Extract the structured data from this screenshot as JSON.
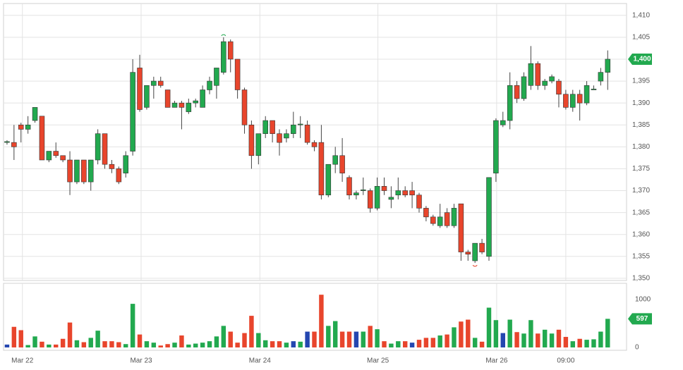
{
  "chart_data": [
    {
      "type": "candlestick",
      "up_color": "#22a94f",
      "down_color": "#e8452c",
      "wick_color": "#444444",
      "open": [
        1381,
        1381,
        1385,
        1384,
        1386,
        1387,
        1377,
        1379,
        1378,
        1377,
        1372,
        1377,
        1372,
        1377,
        1383,
        1376,
        1375,
        1374,
        1379,
        1398,
        1389,
        1394,
        1395,
        1393,
        1389,
        1390,
        1388,
        1390,
        1389,
        1393,
        1394,
        1397,
        1404,
        1400,
        1393,
        1385,
        1378,
        1383,
        1386,
        1383,
        1382,
        1383,
        1385,
        1385,
        1381,
        1381,
        1369,
        1376,
        1378,
        1373,
        1369,
        1370,
        1370,
        1366,
        1371,
        1368,
        1369,
        1370,
        1370,
        1369,
        1366,
        1364,
        1362,
        1365,
        1362,
        1367,
        1356,
        1354,
        1358,
        1355,
        1374,
        1385,
        1386,
        1394,
        1391,
        1394,
        1399,
        1394,
        1395,
        1395,
        1392,
        1389,
        1392,
        1390,
        1393,
        1395,
        1397
      ],
      "high": [
        1381.5,
        1385,
        1385.5,
        1387,
        1389,
        1387,
        1379,
        1381,
        1378,
        1379,
        1377,
        1377,
        1377,
        1384,
        1383,
        1377,
        1375.5,
        1379,
        1400,
        1401,
        1394,
        1396,
        1396,
        1393,
        1390.5,
        1390.5,
        1391,
        1391,
        1394,
        1396,
        1398,
        1405,
        1404.5,
        1400,
        1393.5,
        1386,
        1383,
        1387,
        1386,
        1384,
        1384,
        1388,
        1387,
        1386,
        1381.5,
        1385,
        1376,
        1380,
        1382,
        1373.5,
        1370,
        1373,
        1370.5,
        1373,
        1373,
        1371,
        1373,
        1371,
        1372,
        1369.5,
        1366.5,
        1364.5,
        1367,
        1366,
        1367,
        1367,
        1356.5,
        1358,
        1359,
        1373,
        1386.5,
        1388,
        1397,
        1395,
        1397,
        1403,
        1399.5,
        1395.5,
        1396.5,
        1395.5,
        1393,
        1393,
        1393,
        1395,
        1394,
        1398,
        1402
      ],
      "low": [
        1380.5,
        1377,
        1381,
        1383,
        1385.5,
        1377,
        1376.5,
        1377.5,
        1376.5,
        1369,
        1371.5,
        1371.5,
        1370,
        1376,
        1375,
        1374,
        1371.5,
        1373,
        1378,
        1388,
        1388.5,
        1391,
        1393.5,
        1389,
        1389,
        1384,
        1387.5,
        1389,
        1389,
        1392,
        1391,
        1396.5,
        1397,
        1391,
        1383,
        1375,
        1376,
        1382,
        1381,
        1378,
        1381,
        1382,
        1382,
        1380.5,
        1379,
        1368,
        1368.5,
        1374,
        1372,
        1368,
        1368,
        1369,
        1365,
        1365.5,
        1369,
        1366,
        1368,
        1368.5,
        1366,
        1365,
        1363,
        1362,
        1361.5,
        1361.5,
        1361.5,
        1354,
        1354,
        1353.5,
        1355.5,
        1354,
        1372,
        1384.5,
        1384,
        1390,
        1390.5,
        1393,
        1393,
        1393,
        1394.5,
        1389,
        1388.5,
        1388,
        1386,
        1389.5,
        1393,
        1394,
        1393
      ],
      "close": [
        1381.2,
        1380,
        1384,
        1385,
        1389,
        1377,
        1379,
        1378,
        1377,
        1372,
        1377,
        1372,
        1377,
        1383,
        1376,
        1375,
        1372,
        1378,
        1397,
        1388.5,
        1394,
        1395,
        1394,
        1389,
        1390,
        1389,
        1390,
        1390.5,
        1393,
        1395,
        1398,
        1404,
        1400,
        1393,
        1385,
        1378,
        1383,
        1386,
        1383,
        1381,
        1383,
        1385,
        1385.2,
        1381,
        1380,
        1369,
        1376,
        1378,
        1374,
        1369,
        1369.5,
        1370.2,
        1366,
        1371,
        1370,
        1368.5,
        1370,
        1369,
        1369,
        1366,
        1364,
        1362.5,
        1364,
        1362,
        1366,
        1356,
        1355.5,
        1358,
        1356,
        1373,
        1386,
        1386,
        1394,
        1391,
        1396,
        1399,
        1394,
        1395,
        1396,
        1392,
        1389,
        1392,
        1390,
        1394,
        1393.2,
        1397,
        1400
      ],
      "xlim": [
        -0.5,
        88.7
      ],
      "ylim": [
        1349.5,
        1412.7
      ],
      "yticks": [
        {
          "value": 1350,
          "label": "1,350"
        },
        {
          "value": 1355,
          "label": "1,355"
        },
        {
          "value": 1360,
          "label": "1,360"
        },
        {
          "value": 1365,
          "label": "1,365"
        },
        {
          "value": 1370,
          "label": "1,370"
        },
        {
          "value": 1375,
          "label": "1,375"
        },
        {
          "value": 1380,
          "label": "1,380"
        },
        {
          "value": 1385,
          "label": "1,385"
        },
        {
          "value": 1390,
          "label": "1,390"
        },
        {
          "value": 1395,
          "label": "1,395"
        },
        {
          "value": 1400,
          "label": "1,400"
        },
        {
          "value": 1405,
          "label": "1,405"
        },
        {
          "value": 1410,
          "label": "1,410"
        }
      ],
      "xticks": [
        {
          "value": 2.2,
          "label": "Mar 22"
        },
        {
          "value": 19.2,
          "label": "Mar 23"
        },
        {
          "value": 36.2,
          "label": "Mar 24"
        },
        {
          "value": 53.1,
          "label": "Mar 25"
        },
        {
          "value": 70.1,
          "label": "Mar 26"
        },
        {
          "value": 80.0,
          "label": "09:00"
        }
      ],
      "last": {
        "value": 1400,
        "label": "1,400"
      },
      "grid": true
    },
    {
      "type": "bar",
      "values": [
        60,
        430,
        360,
        50,
        230,
        120,
        60,
        60,
        180,
        520,
        150,
        110,
        200,
        350,
        130,
        130,
        110,
        70,
        910,
        270,
        130,
        100,
        40,
        70,
        100,
        250,
        60,
        80,
        100,
        130,
        230,
        450,
        330,
        100,
        300,
        660,
        300,
        150,
        130,
        130,
        100,
        130,
        120,
        330,
        330,
        1100,
        450,
        550,
        330,
        330,
        330,
        330,
        450,
        380,
        130,
        80,
        130,
        130,
        100,
        160,
        200,
        200,
        250,
        270,
        420,
        540,
        580,
        200,
        120,
        830,
        570,
        300,
        580,
        320,
        290,
        570,
        290,
        370,
        290,
        370,
        220,
        130,
        180,
        160,
        170,
        330,
        597
      ],
      "colors": [
        "#2446b0",
        "#e8452c",
        "#e8452c",
        "#22a94f",
        "#22a94f",
        "#e8452c",
        "#22a94f",
        "#e8452c",
        "#e8452c",
        "#e8452c",
        "#22a94f",
        "#e8452c",
        "#22a94f",
        "#22a94f",
        "#e8452c",
        "#e8452c",
        "#e8452c",
        "#22a94f",
        "#22a94f",
        "#e8452c",
        "#22a94f",
        "#22a94f",
        "#e8452c",
        "#e8452c",
        "#22a94f",
        "#e8452c",
        "#22a94f",
        "#22a94f",
        "#22a94f",
        "#22a94f",
        "#22a94f",
        "#22a94f",
        "#e8452c",
        "#e8452c",
        "#e8452c",
        "#e8452c",
        "#22a94f",
        "#22a94f",
        "#e8452c",
        "#e8452c",
        "#22a94f",
        "#2446b0",
        "#22a94f",
        "#2446b0",
        "#e8452c",
        "#e8452c",
        "#22a94f",
        "#22a94f",
        "#e8452c",
        "#e8452c",
        "#2446b0",
        "#22a94f",
        "#e8452c",
        "#22a94f",
        "#e8452c",
        "#22a94f",
        "#22a94f",
        "#e8452c",
        "#2446b0",
        "#e8452c",
        "#e8452c",
        "#e8452c",
        "#22a94f",
        "#e8452c",
        "#22a94f",
        "#e8452c",
        "#e8452c",
        "#22a94f",
        "#e8452c",
        "#22a94f",
        "#22a94f",
        "#2446b0",
        "#22a94f",
        "#e8452c",
        "#22a94f",
        "#22a94f",
        "#e8452c",
        "#22a94f",
        "#22a94f",
        "#e8452c",
        "#e8452c",
        "#22a94f",
        "#e8452c",
        "#22a94f",
        "#22a94f",
        "#22a94f",
        "#22a94f"
      ],
      "ylim": [
        -59,
        1338
      ],
      "yticks": [
        0,
        1000
      ],
      "last": 597,
      "last_color": "#22a94f"
    }
  ]
}
